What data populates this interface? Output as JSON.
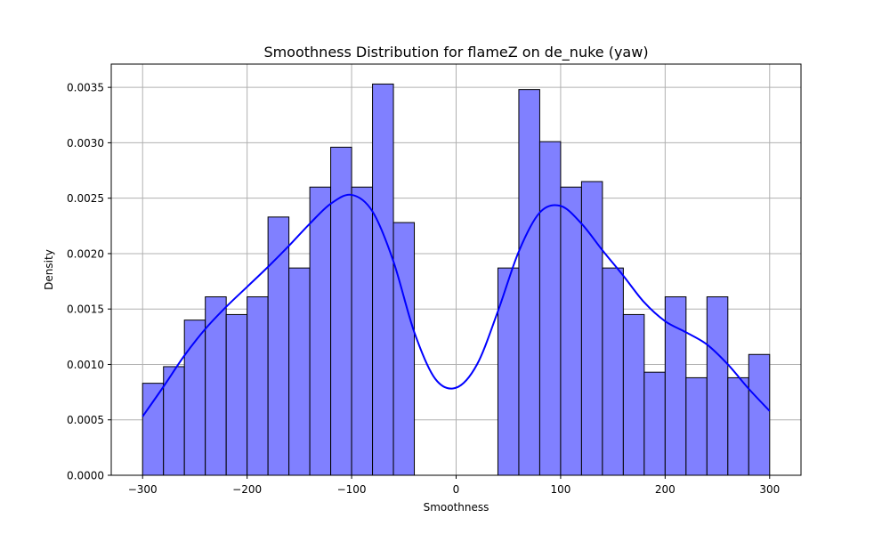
{
  "chart_data": {
    "type": "bar",
    "title": "Smoothness Distribution for flameZ on de_nuke (yaw)",
    "xlabel": "Smoothness",
    "ylabel": "Density",
    "xlim": [
      -330,
      330
    ],
    "ylim": [
      0,
      0.00371
    ],
    "xticks": [
      -300,
      -200,
      -100,
      0,
      100,
      200,
      300
    ],
    "xtick_labels": [
      "−300",
      "−200",
      "−100",
      "0",
      "100",
      "200",
      "300"
    ],
    "yticks": [
      0,
      0.0005,
      0.001,
      0.0015,
      0.002,
      0.0025,
      0.003,
      0.0035
    ],
    "ytick_labels": [
      "0.0000",
      "0.0005",
      "0.0010",
      "0.0015",
      "0.0020",
      "0.0025",
      "0.0030",
      "0.0035"
    ],
    "grid": true,
    "bar_color": "#8080ff",
    "bar_edge_color": "#000000",
    "kde_color": "#0000ff",
    "bins": [
      {
        "x0": -300,
        "x1": -280,
        "density": 0.00083
      },
      {
        "x0": -280,
        "x1": -260,
        "density": 0.00098
      },
      {
        "x0": -260,
        "x1": -240,
        "density": 0.0014
      },
      {
        "x0": -240,
        "x1": -220,
        "density": 0.00161
      },
      {
        "x0": -220,
        "x1": -200,
        "density": 0.00145
      },
      {
        "x0": -200,
        "x1": -180,
        "density": 0.00161
      },
      {
        "x0": -180,
        "x1": -160,
        "density": 0.00233
      },
      {
        "x0": -160,
        "x1": -140,
        "density": 0.00187
      },
      {
        "x0": -140,
        "x1": -120,
        "density": 0.0026
      },
      {
        "x0": -120,
        "x1": -100,
        "density": 0.00296
      },
      {
        "x0": -100,
        "x1": -80,
        "density": 0.0026
      },
      {
        "x0": -80,
        "x1": -60,
        "density": 0.00353
      },
      {
        "x0": -60,
        "x1": -40,
        "density": 0.00228
      },
      {
        "x0": -40,
        "x1": -20,
        "density": 0
      },
      {
        "x0": -20,
        "x1": 0,
        "density": 0
      },
      {
        "x0": 0,
        "x1": 20,
        "density": 0
      },
      {
        "x0": 20,
        "x1": 40,
        "density": 0
      },
      {
        "x0": 40,
        "x1": 60,
        "density": 0.00187
      },
      {
        "x0": 60,
        "x1": 80,
        "density": 0.00348
      },
      {
        "x0": 80,
        "x1": 100,
        "density": 0.00301
      },
      {
        "x0": 100,
        "x1": 120,
        "density": 0.0026
      },
      {
        "x0": 120,
        "x1": 140,
        "density": 0.00265
      },
      {
        "x0": 140,
        "x1": 160,
        "density": 0.00187
      },
      {
        "x0": 160,
        "x1": 180,
        "density": 0.00145
      },
      {
        "x0": 180,
        "x1": 200,
        "density": 0.00093
      },
      {
        "x0": 200,
        "x1": 220,
        "density": 0.00161
      },
      {
        "x0": 220,
        "x1": 240,
        "density": 0.00088
      },
      {
        "x0": 240,
        "x1": 260,
        "density": 0.00161
      },
      {
        "x0": 260,
        "x1": 280,
        "density": 0.00088
      },
      {
        "x0": 280,
        "x1": 300,
        "density": 0.00109
      }
    ],
    "kde": {
      "x": [
        -300,
        -280,
        -260,
        -240,
        -220,
        -200,
        -180,
        -160,
        -140,
        -120,
        -100,
        -80,
        -60,
        -40,
        -20,
        0,
        20,
        40,
        60,
        80,
        100,
        120,
        140,
        160,
        180,
        200,
        220,
        240,
        260,
        280,
        300
      ],
      "y": [
        0.00053,
        0.0008,
        0.00108,
        0.00132,
        0.00152,
        0.0017,
        0.00188,
        0.00207,
        0.00227,
        0.00245,
        0.00253,
        0.00238,
        0.00193,
        0.00129,
        0.00087,
        0.00079,
        0.001,
        0.00148,
        0.00202,
        0.00237,
        0.00243,
        0.00227,
        0.00203,
        0.0018,
        0.00156,
        0.00139,
        0.00129,
        0.00118,
        0.001,
        0.00078,
        0.00058
      ]
    }
  }
}
